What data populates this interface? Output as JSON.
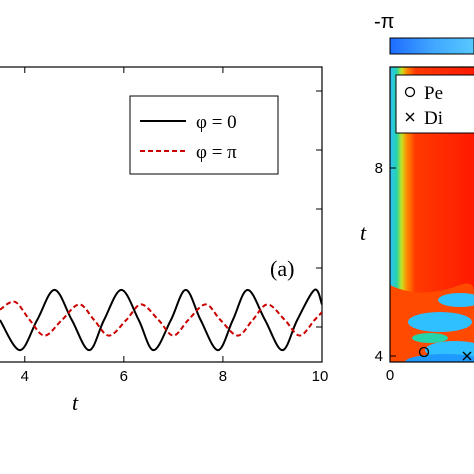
{
  "chart_data": [
    {
      "type": "line",
      "panel_label": "(a)",
      "xlabel": "t",
      "ylabel": "",
      "xlim": [
        3.5,
        10
      ],
      "x_ticks": [
        "4",
        "6",
        "8",
        "10"
      ],
      "x_tick_values": [
        4,
        6,
        8,
        10
      ],
      "legend_position": "top-right",
      "series": [
        {
          "name": "φ = 0",
          "style": "solid",
          "color": "#000000",
          "x": [
            3.5,
            3.9,
            4.25,
            4.6,
            4.95,
            5.3,
            5.6,
            5.95,
            6.3,
            6.6,
            6.95,
            7.25,
            7.55,
            7.9,
            8.2,
            8.5,
            8.85,
            9.2,
            9.5,
            9.85,
            10.0
          ],
          "y": [
            0.0,
            -0.58,
            0.0,
            0.58,
            0.0,
            -0.58,
            0.0,
            0.58,
            0.0,
            -0.58,
            0.0,
            0.58,
            0.0,
            -0.58,
            0.0,
            0.58,
            0.0,
            -0.58,
            0.0,
            0.58,
            0.3
          ]
        },
        {
          "name": "φ = π",
          "style": "dashed",
          "color": "#cc0000",
          "x": [
            3.5,
            3.8,
            4.1,
            4.4,
            4.75,
            5.1,
            5.4,
            5.7,
            6.05,
            6.35,
            6.7,
            7.0,
            7.3,
            7.65,
            7.95,
            8.3,
            8.6,
            8.9,
            9.25,
            9.55,
            9.85,
            10.0
          ],
          "y": [
            0.2,
            0.35,
            0.0,
            -0.3,
            0.0,
            0.3,
            0.0,
            -0.3,
            0.0,
            0.3,
            0.0,
            -0.3,
            0.0,
            0.3,
            0.0,
            -0.3,
            0.0,
            0.3,
            0.0,
            -0.3,
            0.0,
            0.15
          ]
        }
      ]
    },
    {
      "type": "heatmap",
      "colorbar_label": "-π",
      "xlabel": "",
      "ylabel": "t",
      "x_ticks": [
        "0"
      ],
      "y_ticks": [
        "4",
        "8"
      ],
      "y_tick_values": [
        4,
        8
      ],
      "ylim": [
        3,
        10
      ],
      "legend_position": "top-left",
      "legend": [
        {
          "marker": "circle",
          "label": "Pe"
        },
        {
          "marker": "cross",
          "label": "Di"
        }
      ],
      "markers": [
        {
          "type": "circle",
          "x": 0.6,
          "y": 3.5
        },
        {
          "type": "cross",
          "x": 1.0,
          "y": 4.0
        }
      ]
    }
  ]
}
